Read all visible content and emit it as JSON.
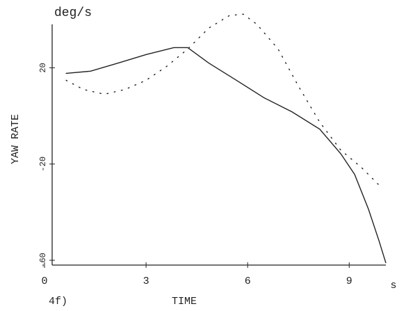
{
  "chart_data": {
    "type": "line",
    "title": "deg/s",
    "y_label": "YAW RATE",
    "x_label": "TIME",
    "x_unit": "s",
    "figure_label": "4f)",
    "xlim": [
      0,
      10.1
    ],
    "ylim": [
      -62,
      45
    ],
    "xticks": [
      0,
      3,
      6,
      9
    ],
    "yticks": [
      20,
      -20,
      -60
    ],
    "series": [
      {
        "style": "solid",
        "color": "#222",
        "x": [
          0.64,
          1.36,
          2.18,
          3.0,
          3.82,
          4.23,
          4.85,
          5.67,
          6.49,
          7.31,
          8.13,
          8.75,
          9.16,
          9.57,
          9.88,
          10.08
        ],
        "values": [
          17.7,
          18.6,
          22.0,
          25.5,
          28.4,
          28.4,
          22.0,
          14.8,
          7.5,
          1.7,
          -5.5,
          -15.7,
          -24.3,
          -38.8,
          -51.9,
          -61
        ]
      },
      {
        "style": "dotted",
        "color": "#222",
        "x": [
          0.64,
          1.15,
          1.77,
          2.38,
          3.0,
          3.61,
          4.23,
          4.85,
          5.46,
          5.87,
          6.28,
          6.9,
          7.52,
          8.13,
          8.75,
          9.36,
          9.94
        ],
        "values": [
          14.8,
          11.0,
          9.0,
          11.0,
          14.8,
          20.6,
          27.8,
          36.5,
          41.7,
          42.3,
          38.0,
          27.8,
          11.9,
          -2.6,
          -14.2,
          -21.4,
          -29.6
        ]
      }
    ]
  }
}
